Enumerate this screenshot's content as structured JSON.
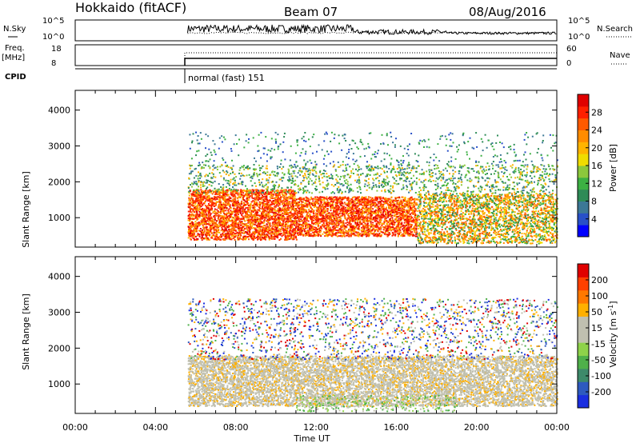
{
  "header": {
    "station": "Hokkaido (fitACF)",
    "beam": "Beam 07",
    "date": "08/Aug/2016"
  },
  "meta_panels": {
    "nsky_label": "N.Sky",
    "nsearch_label": "N.Search",
    "freq_label_1": "Freq.",
    "freq_label_2": "[MHz]",
    "nave_label": "Nave",
    "cpid_label": "CPID",
    "noise_ticks": [
      "10^5",
      "10^0"
    ],
    "freq_ticks": [
      "18",
      "8"
    ],
    "nave_ticks": [
      "60",
      "0"
    ],
    "cpid_text": "normal (fast) 151"
  },
  "chart_data": [
    {
      "type": "heatmap",
      "name": "power",
      "ylabel": "Slant Range [km]",
      "ylim": [
        180,
        4550
      ],
      "yticks": [
        1000,
        2000,
        3000,
        4000
      ],
      "xlim": [
        0,
        24
      ],
      "colorbar": {
        "label": "Power [dB]",
        "ticks": [
          4,
          8,
          12,
          16,
          20,
          24,
          28
        ],
        "range": [
          0,
          32
        ],
        "colors": [
          "#0000ff",
          "#2850c8",
          "#3c7896",
          "#2e8b57",
          "#3cb043",
          "#8cc83c",
          "#f0dc00",
          "#ffb400",
          "#ff8c00",
          "#ff5a00",
          "#ff2000",
          "#e00000"
        ]
      },
      "data_start_hour": 5.6,
      "regions": [
        {
          "hours": [
            5.6,
            11.0
          ],
          "range_km": [
            400,
            1800
          ],
          "level": "high"
        },
        {
          "hours": [
            11.0,
            17.0
          ],
          "range_km": [
            500,
            1600
          ],
          "level": "high"
        },
        {
          "hours": [
            17.0,
            24.0
          ],
          "range_km": [
            300,
            1700
          ],
          "level": "medium"
        },
        {
          "hours": [
            5.6,
            24.0
          ],
          "range_km": [
            1700,
            2500
          ],
          "level": "low"
        },
        {
          "hours": [
            5.6,
            24.0
          ],
          "range_km": [
            2500,
            3400
          ],
          "level": "sparse"
        }
      ]
    },
    {
      "type": "heatmap",
      "name": "velocity",
      "ylabel": "Slant Range [km]",
      "xlabel": "Time UT",
      "ylim": [
        180,
        4550
      ],
      "yticks": [
        1000,
        2000,
        3000,
        4000
      ],
      "xlim": [
        0,
        24
      ],
      "xticks": [
        "00:00",
        "04:00",
        "08:00",
        "12:00",
        "16:00",
        "20:00",
        "00:00"
      ],
      "colorbar": {
        "label": "Velocity [m s-1]",
        "ticks": [
          200,
          100,
          50,
          15,
          -15,
          -50,
          -100,
          -200
        ],
        "colors": [
          "#1a2ee0",
          "#2e5abf",
          "#3d8a6a",
          "#4fb04a",
          "#8ed24a",
          "#c0c0b0",
          "#c0c0b0",
          "#ffb000",
          "#ff7800",
          "#ff4000",
          "#e00000"
        ]
      },
      "data_start_hour": 5.6,
      "regions": [
        {
          "hours": [
            5.6,
            24.0
          ],
          "range_km": [
            400,
            1800
          ],
          "level": "near-zero"
        },
        {
          "hours": [
            11.0,
            19.0
          ],
          "range_km": [
            250,
            700
          ],
          "level": "positive"
        },
        {
          "hours": [
            5.6,
            24.0
          ],
          "range_km": [
            1700,
            3400
          ],
          "level": "mixed"
        }
      ]
    }
  ]
}
